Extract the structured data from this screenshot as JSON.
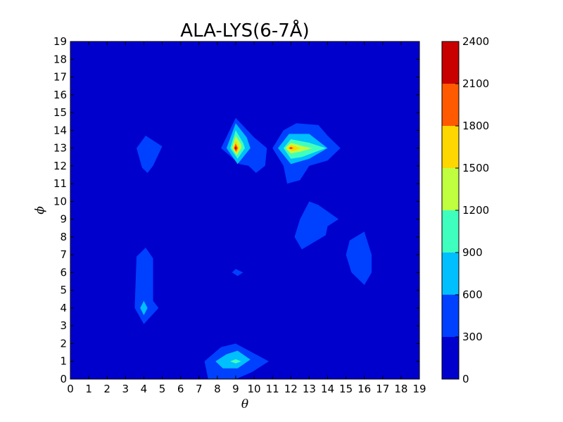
{
  "chart_data": {
    "type": "heatmap",
    "title": "ALA-LYS(6-7Å)",
    "xlabel": "θ",
    "ylabel": "ϕ",
    "xlim": [
      0,
      19
    ],
    "ylim": [
      0,
      19
    ],
    "x_ticks": [
      "0",
      "1",
      "2",
      "3",
      "4",
      "5",
      "6",
      "7",
      "8",
      "9",
      "10",
      "11",
      "12",
      "13",
      "14",
      "15",
      "16",
      "17",
      "18",
      "19"
    ],
    "y_ticks": [
      "0",
      "1",
      "2",
      "3",
      "4",
      "5",
      "6",
      "7",
      "8",
      "9",
      "10",
      "11",
      "12",
      "13",
      "14",
      "15",
      "16",
      "17",
      "18",
      "19"
    ],
    "colorbar": {
      "levels": [
        0,
        300,
        600,
        900,
        1200,
        1500,
        1800,
        2100,
        2400
      ],
      "tick_labels": [
        "0",
        "300",
        "600",
        "900",
        "1200",
        "1500",
        "1800",
        "2100",
        "2400"
      ],
      "colors": [
        "#0000cd",
        "#0040ff",
        "#00bfff",
        "#3fffbf",
        "#bfff3f",
        "#ffd700",
        "#ff5a00",
        "#c80000"
      ]
    },
    "regions": [
      {
        "name": "peak-9-13",
        "level": 1,
        "points": [
          [
            7.3,
            1.0
          ],
          [
            8.2,
            1.8
          ],
          [
            9.0,
            2.0
          ],
          [
            9.9,
            1.5
          ],
          [
            10.8,
            1.0
          ],
          [
            9.9,
            0.4
          ],
          [
            9.0,
            0.0
          ],
          [
            7.5,
            0.0
          ]
        ]
      },
      {
        "name": "peak-9-13",
        "level": 2,
        "points": [
          [
            7.9,
            1.0
          ],
          [
            8.5,
            1.4
          ],
          [
            9.1,
            1.6
          ],
          [
            9.8,
            1.1
          ],
          [
            9.1,
            0.6
          ],
          [
            8.3,
            0.6
          ]
        ]
      },
      {
        "name": "peak-9-13",
        "level": 3,
        "points": [
          [
            8.7,
            1.0
          ],
          [
            9.0,
            1.12
          ],
          [
            9.3,
            1.0
          ],
          [
            9.0,
            0.88
          ]
        ]
      },
      {
        "name": "peak-9-13",
        "level": 1,
        "points": [
          [
            3.5,
            4.0
          ],
          [
            3.6,
            6.9
          ],
          [
            4.1,
            7.4
          ],
          [
            4.5,
            6.8
          ],
          [
            4.5,
            4.4
          ],
          [
            4.8,
            4.0
          ],
          [
            4.0,
            3.1
          ]
        ]
      },
      {
        "name": "peak-9-13",
        "level": 2,
        "points": [
          [
            3.8,
            4.0
          ],
          [
            4.0,
            4.4
          ],
          [
            4.2,
            4.0
          ],
          [
            4.0,
            3.6
          ]
        ]
      },
      {
        "name": "peak-9-13",
        "level": 1,
        "points": [
          [
            8.8,
            6.0
          ],
          [
            9.0,
            6.2
          ],
          [
            9.4,
            6.0
          ],
          [
            9.1,
            5.8
          ]
        ]
      },
      {
        "name": "peak-9-13",
        "level": 1,
        "points": [
          [
            3.6,
            13.0
          ],
          [
            4.1,
            13.7
          ],
          [
            5.0,
            13.1
          ],
          [
            4.5,
            12.0
          ],
          [
            4.2,
            11.6
          ],
          [
            3.9,
            11.9
          ]
        ]
      },
      {
        "name": "peak-9-13",
        "level": 1,
        "points": [
          [
            8.2,
            13.0
          ],
          [
            9.0,
            14.7
          ],
          [
            10.0,
            13.6
          ],
          [
            10.7,
            13.0
          ],
          [
            10.6,
            12.0
          ],
          [
            10.1,
            11.6
          ],
          [
            9.7,
            12.0
          ],
          [
            9.2,
            12.1
          ]
        ]
      },
      {
        "name": "peak-9-13",
        "level": 2,
        "points": [
          [
            8.5,
            13.0
          ],
          [
            9.0,
            14.4
          ],
          [
            9.6,
            13.6
          ],
          [
            9.8,
            13.0
          ],
          [
            9.1,
            12.1
          ]
        ]
      },
      {
        "name": "peak-9-13",
        "level": 3,
        "points": [
          [
            8.7,
            13.0
          ],
          [
            9.0,
            14.0
          ],
          [
            9.4,
            13.3
          ],
          [
            9.5,
            13.0
          ],
          [
            9.1,
            12.4
          ]
        ]
      },
      {
        "name": "peak-9-13",
        "level": 4,
        "points": [
          [
            8.8,
            13.0
          ],
          [
            9.0,
            13.7
          ],
          [
            9.3,
            13.2
          ],
          [
            9.3,
            13.0
          ],
          [
            9.05,
            12.6
          ]
        ]
      },
      {
        "name": "peak-9-13",
        "level": 5,
        "points": [
          [
            8.85,
            13.0
          ],
          [
            9.0,
            13.45
          ],
          [
            9.2,
            13.0
          ],
          [
            9.05,
            12.7
          ]
        ]
      },
      {
        "name": "peak-9-13",
        "level": 6,
        "points": [
          [
            8.9,
            13.0
          ],
          [
            9.0,
            13.25
          ],
          [
            9.12,
            13.0
          ],
          [
            9.02,
            12.8
          ]
        ]
      },
      {
        "name": "peak-9-13",
        "level": 7,
        "points": [
          [
            8.95,
            13.0
          ],
          [
            9.0,
            13.12
          ],
          [
            9.06,
            13.0
          ],
          [
            9.0,
            12.9
          ]
        ]
      },
      {
        "name": "peak-12-13",
        "level": 1,
        "points": [
          [
            11.0,
            13.0
          ],
          [
            11.6,
            14.0
          ],
          [
            12.3,
            14.4
          ],
          [
            13.5,
            14.3
          ],
          [
            14.0,
            13.7
          ],
          [
            14.7,
            13.0
          ],
          [
            14.0,
            12.3
          ],
          [
            13.0,
            12.0
          ],
          [
            12.5,
            11.2
          ],
          [
            11.8,
            11.0
          ],
          [
            11.6,
            12.0
          ]
        ]
      },
      {
        "name": "peak-12-13",
        "level": 2,
        "points": [
          [
            11.3,
            13.0
          ],
          [
            11.9,
            13.8
          ],
          [
            13.0,
            13.8
          ],
          [
            14.0,
            13.0
          ],
          [
            13.0,
            12.4
          ],
          [
            12.0,
            12.1
          ]
        ]
      },
      {
        "name": "peak-12-13",
        "level": 3,
        "points": [
          [
            11.6,
            13.0
          ],
          [
            12.0,
            13.5
          ],
          [
            13.0,
            13.3
          ],
          [
            13.9,
            13.0
          ],
          [
            12.6,
            12.5
          ],
          [
            12.0,
            12.4
          ]
        ]
      },
      {
        "name": "peak-12-13",
        "level": 4,
        "points": [
          [
            11.7,
            13.0
          ],
          [
            12.0,
            13.3
          ],
          [
            12.7,
            13.1
          ],
          [
            13.2,
            13.0
          ],
          [
            12.5,
            12.8
          ],
          [
            12.0,
            12.7
          ]
        ]
      },
      {
        "name": "peak-12-13",
        "level": 5,
        "points": [
          [
            11.8,
            13.0
          ],
          [
            12.0,
            13.18
          ],
          [
            12.5,
            13.0
          ],
          [
            12.1,
            12.82
          ]
        ]
      },
      {
        "name": "peak-12-13",
        "level": 6,
        "points": [
          [
            11.9,
            13.0
          ],
          [
            12.0,
            13.07
          ],
          [
            12.15,
            13.0
          ],
          [
            12.0,
            12.93
          ]
        ]
      },
      {
        "name": "peak-12-13",
        "level": 7,
        "points": [
          [
            11.96,
            13.0
          ],
          [
            12.0,
            13.03
          ],
          [
            12.05,
            13.0
          ],
          [
            12.0,
            12.97
          ]
        ]
      },
      {
        "name": "peak-13-9",
        "level": 1,
        "points": [
          [
            12.2,
            8.0
          ],
          [
            12.6,
            7.3
          ],
          [
            13.9,
            8.1
          ],
          [
            14.0,
            8.6
          ],
          [
            14.6,
            9.0
          ],
          [
            13.5,
            9.8
          ],
          [
            13.0,
            10.0
          ],
          [
            12.5,
            9.0
          ]
        ]
      },
      {
        "name": "peak-16-7",
        "level": 1,
        "points": [
          [
            15.0,
            7.0
          ],
          [
            15.2,
            7.8
          ],
          [
            16.0,
            8.3
          ],
          [
            16.4,
            7.0
          ],
          [
            16.4,
            6.0
          ],
          [
            16.0,
            5.3
          ],
          [
            15.3,
            6.0
          ]
        ]
      }
    ]
  }
}
